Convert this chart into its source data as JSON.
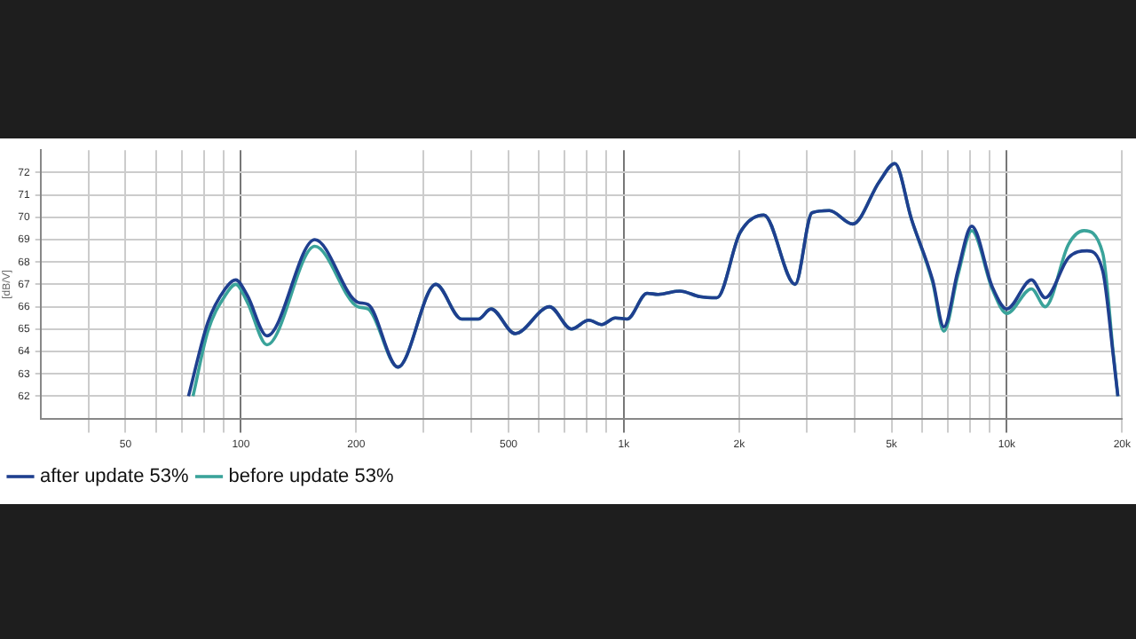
{
  "chart_data": {
    "type": "line",
    "ylabel": "[dB/V]",
    "log": "x",
    "grid": true,
    "legend": "bottom",
    "marker": "none",
    "line_style": "solid",
    "xlim": [
      30,
      20000
    ],
    "ylim": [
      61,
      73
    ],
    "xticks": [
      {
        "value": 40,
        "label": null
      },
      50,
      {
        "value": 60,
        "label": null
      },
      {
        "value": 70,
        "label": null
      },
      {
        "value": 80,
        "label": null
      },
      {
        "value": 90,
        "label": null
      },
      100,
      200,
      {
        "value": 300,
        "label": null
      },
      {
        "value": 400,
        "label": null
      },
      500,
      {
        "value": 600,
        "label": null
      },
      {
        "value": 700,
        "label": null
      },
      {
        "value": 800,
        "label": null
      },
      {
        "value": 900,
        "label": null
      },
      {
        "value": 1000,
        "label": "1k"
      },
      {
        "value": 2000,
        "label": "2k"
      },
      {
        "value": 3000,
        "label": null
      },
      {
        "value": 4000,
        "label": null
      },
      {
        "value": 5000,
        "label": "5k"
      },
      {
        "value": 6000,
        "label": null
      },
      {
        "value": 7000,
        "label": null
      },
      {
        "value": 8000,
        "label": null
      },
      {
        "value": 9000,
        "label": null
      },
      {
        "value": 10000,
        "label": "10k"
      },
      {
        "value": 20000,
        "label": "20k"
      }
    ],
    "yticks": [
      62,
      63,
      64,
      65,
      66,
      67,
      68,
      69,
      70,
      71,
      72
    ],
    "series": [
      {
        "name": "after update 53%",
        "color": "#1f3f8f",
        "x": [
          73,
          82,
          91,
          97,
          104,
          117,
          156,
          202,
          215,
          257,
          323,
          377,
          417,
          450,
          520,
          640,
          730,
          810,
          875,
          950,
          1020,
          1150,
          1230,
          1400,
          1580,
          1750,
          2010,
          2320,
          2800,
          3100,
          3440,
          3960,
          4650,
          5100,
          5640,
          6400,
          6850,
          7450,
          8100,
          9160,
          10000,
          11600,
          12600,
          14500,
          16200,
          17800,
          19000,
          19500
        ],
        "values": [
          62.0,
          65.3,
          66.8,
          67.2,
          66.5,
          64.7,
          69.0,
          66.2,
          66.1,
          63.3,
          67.0,
          65.45,
          65.45,
          65.9,
          64.8,
          66.0,
          65.0,
          65.4,
          65.2,
          65.5,
          65.45,
          66.6,
          66.55,
          66.7,
          66.45,
          66.4,
          69.3,
          70.1,
          67.0,
          70.2,
          70.3,
          69.7,
          71.6,
          72.4,
          69.9,
          67.2,
          65.1,
          67.6,
          69.6,
          66.9,
          65.9,
          67.2,
          66.4,
          68.2,
          68.5,
          67.6,
          63.7,
          62.0
        ]
      },
      {
        "name": "before update 53%",
        "color": "#3aa39a",
        "x": [
          75,
          82,
          91,
          97,
          104,
          117,
          156,
          202,
          215,
          257,
          323,
          377,
          417,
          450,
          520,
          640,
          730,
          810,
          875,
          950,
          1020,
          1150,
          1230,
          1400,
          1580,
          1750,
          2010,
          2320,
          2800,
          3100,
          3440,
          3960,
          4650,
          5100,
          5640,
          6400,
          6850,
          7450,
          8100,
          9160,
          10000,
          11600,
          12600,
          14500,
          15900,
          17800,
          19000,
          19500
        ],
        "values": [
          62.0,
          64.9,
          66.5,
          67.0,
          66.2,
          64.3,
          68.7,
          66.0,
          65.9,
          63.3,
          67.0,
          65.45,
          65.45,
          65.9,
          64.8,
          66.0,
          65.0,
          65.4,
          65.2,
          65.5,
          65.45,
          66.6,
          66.55,
          66.7,
          66.45,
          66.4,
          69.3,
          70.1,
          67.0,
          70.2,
          70.3,
          69.7,
          71.6,
          72.4,
          69.9,
          67.1,
          64.9,
          67.4,
          69.4,
          66.8,
          65.7,
          66.8,
          66.0,
          68.8,
          69.4,
          68.4,
          63.8,
          62.0
        ]
      }
    ]
  }
}
